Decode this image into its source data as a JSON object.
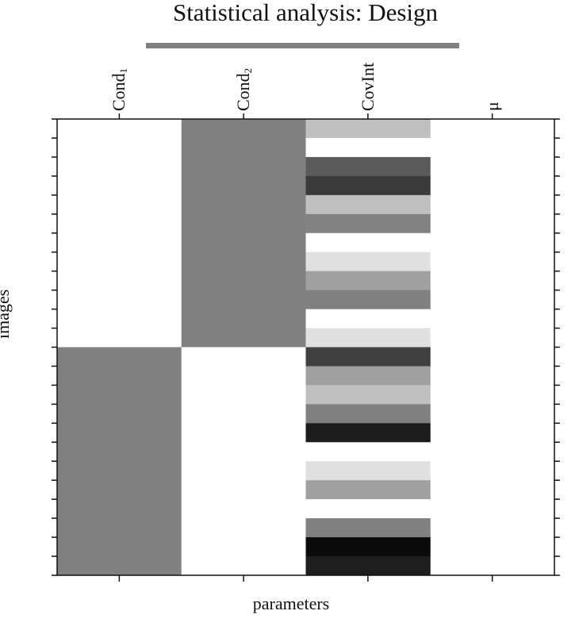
{
  "title": "Statistical analysis: Design",
  "xlabel": "parameters",
  "ylabel": "images",
  "columns": [
    {
      "label": "Cond",
      "sub": "1"
    },
    {
      "label": "Cond",
      "sub": "2"
    },
    {
      "label": "CovInt",
      "sub": ""
    },
    {
      "label": "μ",
      "sub": ""
    }
  ],
  "colors": {
    "title_bar": "#808080",
    "frame": "#111111"
  },
  "design_matrix": {
    "rows": 24,
    "cond1": [
      0,
      0,
      0,
      0,
      0,
      0,
      0,
      0,
      0,
      0,
      0,
      0,
      1,
      1,
      1,
      1,
      1,
      1,
      1,
      1,
      1,
      1,
      1,
      1
    ],
    "cond2": [
      1,
      1,
      1,
      1,
      1,
      1,
      1,
      1,
      1,
      1,
      1,
      1,
      0,
      0,
      0,
      0,
      0,
      0,
      0,
      0,
      0,
      0,
      0,
      0
    ],
    "covint_gray": [
      192,
      255,
      90,
      58,
      192,
      130,
      255,
      224,
      160,
      128,
      255,
      224,
      64,
      160,
      192,
      128,
      28,
      255,
      224,
      160,
      255,
      128,
      10,
      30
    ],
    "mu": [
      0,
      0,
      0,
      0,
      0,
      0,
      0,
      0,
      0,
      0,
      0,
      0,
      0,
      0,
      0,
      0,
      0,
      0,
      0,
      0,
      0,
      0,
      0,
      0
    ]
  }
}
